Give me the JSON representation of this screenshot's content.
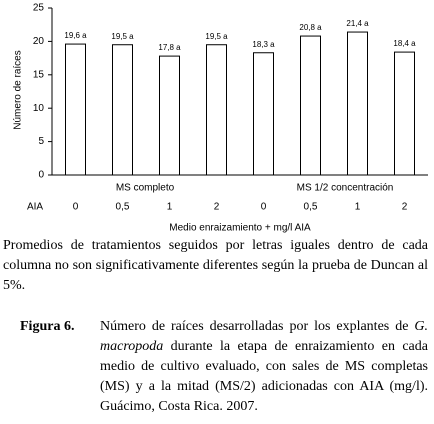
{
  "chart_data": {
    "type": "bar",
    "y_label": "Número de raíces",
    "x_label": "Medio enraizamiento + mg/l AIA",
    "x_prefix": "AIA",
    "group_labels": [
      "MS completo",
      "MS 1/2 concentración"
    ],
    "categories": [
      "0",
      "0,5",
      "1",
      "2",
      "0",
      "0,5",
      "1",
      "2"
    ],
    "values": [
      19.6,
      19.5,
      17.8,
      19.5,
      18.3,
      20.8,
      21.4,
      18.4
    ],
    "value_labels": [
      "19,6 a",
      "19,5 a",
      "17,8 a",
      "19,5 a",
      "18,3 a",
      "20,8 a",
      "21,4 a",
      "18,4 a"
    ],
    "color": "#ffffff",
    "ylim": [
      0,
      25
    ],
    "yticks": [
      0,
      5,
      10,
      15,
      20,
      25
    ]
  },
  "note": "Promedios de tratamientos seguidos por letras iguales dentro de cada columna no son significativamente diferentes según la prueba de Duncan al 5%.",
  "caption": {
    "label": "Figura 6.",
    "parts": [
      "Número de raíces desarrolladas por los explantes de ",
      "G. macropoda",
      " durante la etapa de enraizamiento en cada medio de cultivo evaluado, con sales de MS completas (MS) y a la mitad (MS/2) adicionadas con AIA (mg/l). Guácimo, Costa Rica. 2007."
    ]
  }
}
